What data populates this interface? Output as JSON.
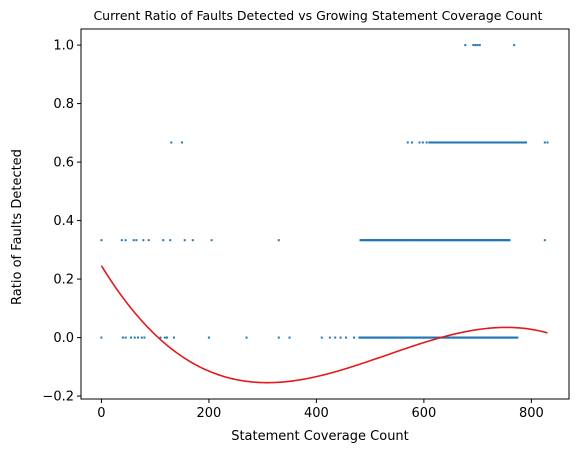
{
  "chart_data": {
    "type": "scatter",
    "title": "Current Ratio of Faults Detected vs Growing Statement Coverage Count",
    "xlabel": "Statement Coverage Count",
    "ylabel": "Ratio of Faults Detected",
    "xlim": [
      -38,
      870
    ],
    "ylim": [
      -0.21,
      1.055
    ],
    "xticks": [
      0,
      200,
      400,
      600,
      800
    ],
    "yticks": [
      -0.2,
      0.0,
      0.2,
      0.4,
      0.6,
      0.8,
      1.0
    ],
    "grid": false,
    "legend": "none",
    "colors": {
      "points": "#1f77b4",
      "trend": "#e31a1c"
    },
    "series": [
      {
        "kind": "scatter",
        "points": [
          [
            0,
            0.0
          ],
          [
            40,
            0.0
          ],
          [
            45,
            0.0
          ],
          [
            55,
            0.0
          ],
          [
            62,
            0.0
          ],
          [
            68,
            0.0
          ],
          [
            75,
            0.0
          ],
          [
            80,
            0.0
          ],
          [
            110,
            0.0
          ],
          [
            118,
            0.0
          ],
          [
            122,
            0.0
          ],
          [
            135,
            0.0
          ],
          [
            200,
            0.0
          ],
          [
            270,
            0.0
          ],
          [
            330,
            0.0
          ],
          [
            350,
            0.0
          ],
          [
            410,
            0.0
          ],
          [
            425,
            0.0
          ],
          [
            435,
            0.0
          ],
          [
            445,
            0.0
          ],
          [
            455,
            0.0
          ],
          [
            470,
            0.0
          ],
          [
            0,
            0.333
          ],
          [
            38,
            0.333
          ],
          [
            45,
            0.333
          ],
          [
            60,
            0.333
          ],
          [
            65,
            0.333
          ],
          [
            78,
            0.333
          ],
          [
            88,
            0.333
          ],
          [
            115,
            0.333
          ],
          [
            128,
            0.333
          ],
          [
            155,
            0.333
          ],
          [
            170,
            0.333
          ],
          [
            205,
            0.333
          ],
          [
            330,
            0.333
          ],
          [
            825,
            0.333
          ],
          [
            130,
            0.667
          ],
          [
            150,
            0.667
          ],
          [
            570,
            0.667
          ],
          [
            578,
            0.667
          ],
          [
            592,
            0.667
          ],
          [
            598,
            0.667
          ],
          [
            605,
            0.667
          ],
          [
            825,
            0.667
          ],
          [
            830,
            0.667
          ],
          [
            677,
            1.0
          ],
          [
            692,
            1.0
          ],
          [
            696,
            1.0
          ],
          [
            700,
            1.0
          ],
          [
            704,
            1.0
          ],
          [
            768,
            1.0
          ]
        ],
        "dense_runs": [
          {
            "y": 0.0,
            "from": 480,
            "to": 775
          },
          {
            "y": 0.333,
            "from": 482,
            "to": 760
          },
          {
            "y": 0.667,
            "from": 610,
            "to": 790
          }
        ]
      },
      {
        "kind": "line",
        "fit": "cubic",
        "coefficients": [
          0.2457,
          -0.003,
          6.85e-06,
          -4.3e-09
        ],
        "x_range": [
          0,
          830
        ]
      }
    ]
  }
}
